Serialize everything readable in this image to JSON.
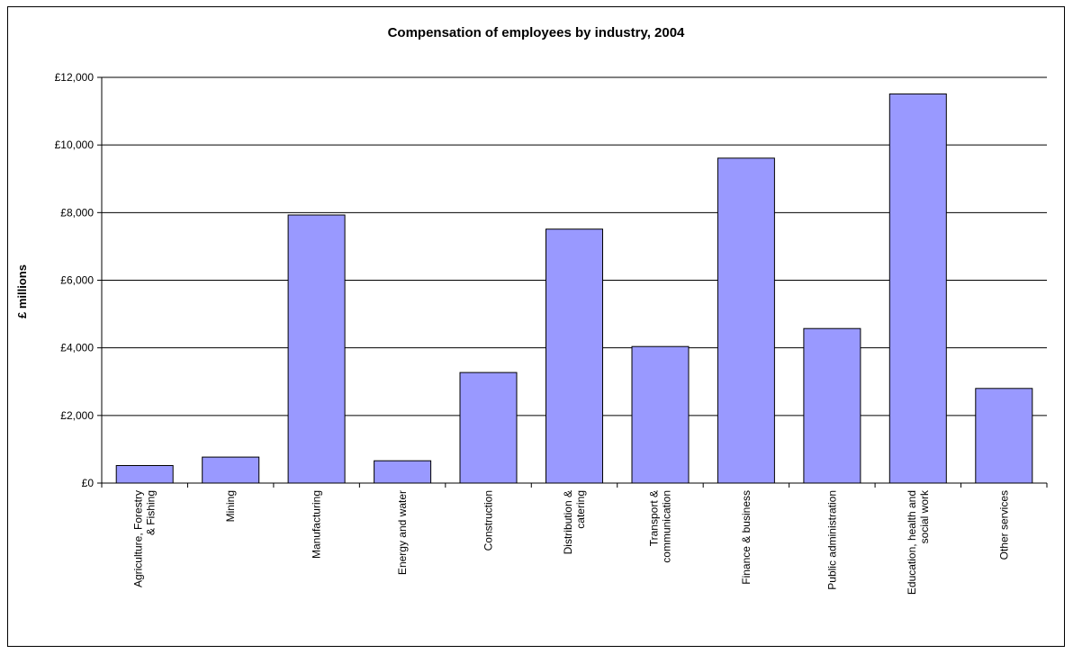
{
  "chart_data": {
    "type": "bar",
    "title": "Compensation of employees by industry, 2004",
    "xlabel": "",
    "ylabel": "£ millions",
    "ylim": [
      0,
      12000
    ],
    "yticks": [
      0,
      2000,
      4000,
      6000,
      8000,
      10000,
      12000
    ],
    "ytick_labels": [
      "£0",
      "£2,000",
      "£4,000",
      "£6,000",
      "£8,000",
      "£10,000",
      "£12,000"
    ],
    "grid": true,
    "legend": "none",
    "bar_color": "#9999FF",
    "categories": [
      "Agriculture, Forestry & Fishing",
      "Mining",
      "Manufacturing",
      "Energy and water",
      "Construction",
      "Distribution & catering",
      "Transport & communication",
      "Finance & business",
      "Public administration",
      "Education, health and social work",
      "Other services"
    ],
    "category_lines": [
      [
        "Agriculture, Forestry",
        "& Fishing"
      ],
      [
        "Mining"
      ],
      [
        "Manufacturing"
      ],
      [
        "Energy and water"
      ],
      [
        "Construction"
      ],
      [
        "Distribution &",
        "catering"
      ],
      [
        "Transport &",
        "communication"
      ],
      [
        "Finance & business"
      ],
      [
        "Public administration"
      ],
      [
        "Education, health and",
        "social work"
      ],
      [
        "Other services"
      ]
    ],
    "values": [
      520,
      770,
      7930,
      660,
      3270,
      7510,
      4040,
      9610,
      4570,
      11510,
      2800
    ]
  }
}
